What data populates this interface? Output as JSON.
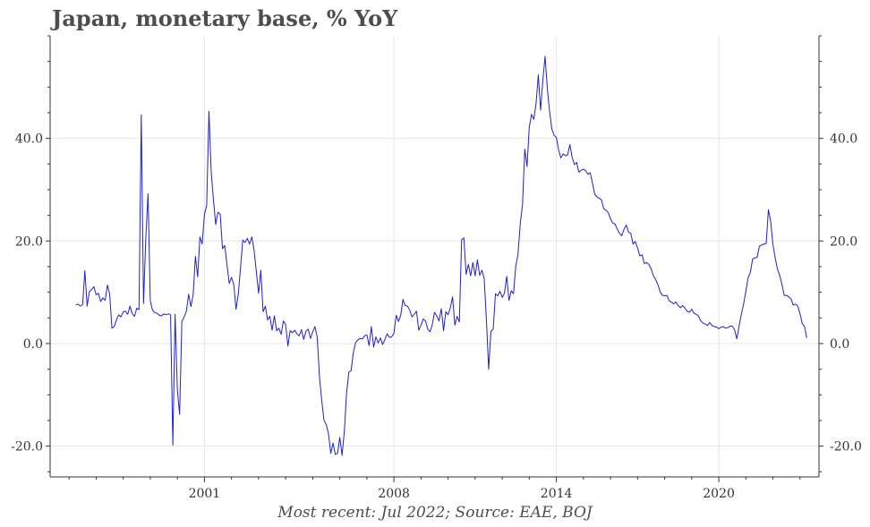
{
  "title": "Japan, monetary base, % YoY",
  "footer": "Most recent: Jul 2022; Source: EAE, BOJ",
  "colors": {
    "line": "#1f1fd6",
    "grid": "#e6e6e6",
    "axis": "#333333",
    "text": "#4d4d4d"
  },
  "chart_data": {
    "type": "line",
    "title": "Japan, monetary base, % YoY",
    "xlabel": "",
    "ylabel": "",
    "xlim": [
      1995.3,
      2023.7
    ],
    "ylim": [
      -26,
      60
    ],
    "x_ticks": [
      2001,
      2008,
      2014,
      2020
    ],
    "y_ticks": [
      -20,
      0,
      20,
      40
    ],
    "y_tick_labels": [
      "-20.0",
      "0.0",
      "20.0",
      "40.0"
    ],
    "grid": true,
    "y_axis_both_sides": true,
    "series": [
      {
        "name": "",
        "x_start": 1996.25,
        "step": 0.08333,
        "values": [
          7.5,
          7.7,
          7.3,
          7.6,
          14.2,
          7.3,
          10.1,
          10.5,
          11.1,
          9.5,
          9.8,
          8.2,
          8.9,
          8.4,
          11.4,
          9.6,
          3.0,
          3.3,
          4.6,
          5.6,
          5.2,
          6.2,
          6.3,
          5.7,
          7.3,
          5.8,
          5.3,
          6.9,
          6.6,
          44.6,
          7.8,
          20.5,
          29.2,
          8.3,
          6.5,
          6.0,
          5.9,
          5.5,
          5.4,
          5.8,
          5.6,
          5.8,
          5.6,
          -19.8,
          5.7,
          -9.0,
          -13.8,
          4.3,
          5.2,
          6.3,
          9.6,
          7.2,
          9.5,
          17.0,
          13.0,
          20.8,
          19.4,
          25.2,
          26.9,
          45.3,
          33.4,
          28.0,
          23.2,
          25.6,
          25.2,
          18.5,
          19.1,
          15.4,
          11.7,
          12.9,
          11.5,
          6.7,
          9.6,
          14.8,
          20.2,
          19.7,
          20.5,
          19.4,
          20.8,
          18.2,
          14.1,
          9.8,
          14.3,
          6.2,
          7.3,
          4.6,
          5.3,
          2.6,
          5.4,
          2.5,
          3.0,
          1.8,
          4.4,
          3.7,
          -0.5,
          2.5,
          2.1,
          2.6,
          1.9,
          1.5,
          2.7,
          0.8,
          2.4,
          2.8,
          1.0,
          2.3,
          3.3,
          1.2,
          -6.5,
          -11.1,
          -15.0,
          -15.8,
          -17.6,
          -21.4,
          -19.4,
          -21.6,
          -21.4,
          -18.3,
          -21.8,
          -17.2,
          -9.7,
          -5.6,
          -5.3,
          -1.8,
          0.2,
          0.7,
          1.0,
          0.9,
          1.5,
          1.7,
          -0.4,
          3.3,
          -0.7,
          1.3,
          0.1,
          1.1,
          -0.2,
          0.8,
          1.9,
          1.2,
          1.3,
          2.0,
          5.5,
          4.3,
          5.5,
          8.6,
          7.4,
          7.3,
          6.5,
          5.2,
          5.7,
          6.3,
          2.6,
          3.6,
          4.8,
          4.4,
          2.8,
          2.3,
          3.7,
          6.1,
          5.4,
          4.4,
          6.8,
          2.5,
          6.2,
          5.6,
          7.0,
          9.1,
          3.6,
          5.3,
          4.2,
          20.2,
          20.6,
          13.5,
          15.4,
          13.2,
          15.8,
          13.2,
          16.3,
          13.3,
          14.3,
          12.7,
          4.6,
          -5.0,
          2.4,
          2.8,
          9.7,
          9.3,
          10.2,
          9.0,
          9.8,
          13.1,
          8.4,
          10.3,
          9.7,
          15.1,
          17.4,
          23.4,
          27.1,
          37.9,
          34.5,
          42.2,
          44.7,
          43.7,
          46.8,
          52.4,
          45.5,
          51.3,
          56.0,
          49.7,
          45.2,
          41.8,
          40.6,
          40.2,
          37.7,
          36.2,
          37.0,
          36.6,
          36.8,
          38.8,
          36.3,
          34.9,
          35.3,
          33.4,
          33.8,
          34.0,
          33.7,
          33.0,
          33.3,
          31.3,
          29.1,
          28.6,
          28.3,
          28.0,
          26.3,
          26.0,
          25.5,
          24.3,
          23.5,
          23.3,
          22.3,
          21.5,
          21.0,
          22.3,
          23.1,
          21.7,
          21.5,
          19.4,
          19.9,
          18.6,
          17.1,
          17.3,
          15.6,
          15.8,
          15.4,
          14.6,
          13.2,
          12.5,
          11.5,
          10.1,
          9.4,
          9.3,
          9.4,
          8.3,
          8.1,
          7.7,
          8.1,
          7.4,
          7.0,
          7.4,
          6.9,
          6.3,
          6.1,
          6.7,
          5.9,
          5.7,
          5.4,
          4.4,
          4.0,
          3.8,
          3.5,
          4.1,
          3.5,
          3.3,
          3.2,
          2.9,
          3.2,
          3.3,
          3.0,
          3.1,
          3.4,
          3.4,
          2.7,
          0.9,
          3.4,
          5.7,
          7.7,
          10.2,
          12.8,
          13.9,
          16.5,
          16.7,
          16.8,
          19.0,
          19.2,
          19.4,
          19.5,
          26.1,
          23.8,
          19.3,
          16.7,
          14.5,
          13.3,
          11.5,
          9.4,
          9.4,
          9.1,
          8.7,
          7.5,
          7.7,
          7.3,
          5.8,
          3.9,
          3.3,
          1.1
        ]
      }
    ]
  }
}
